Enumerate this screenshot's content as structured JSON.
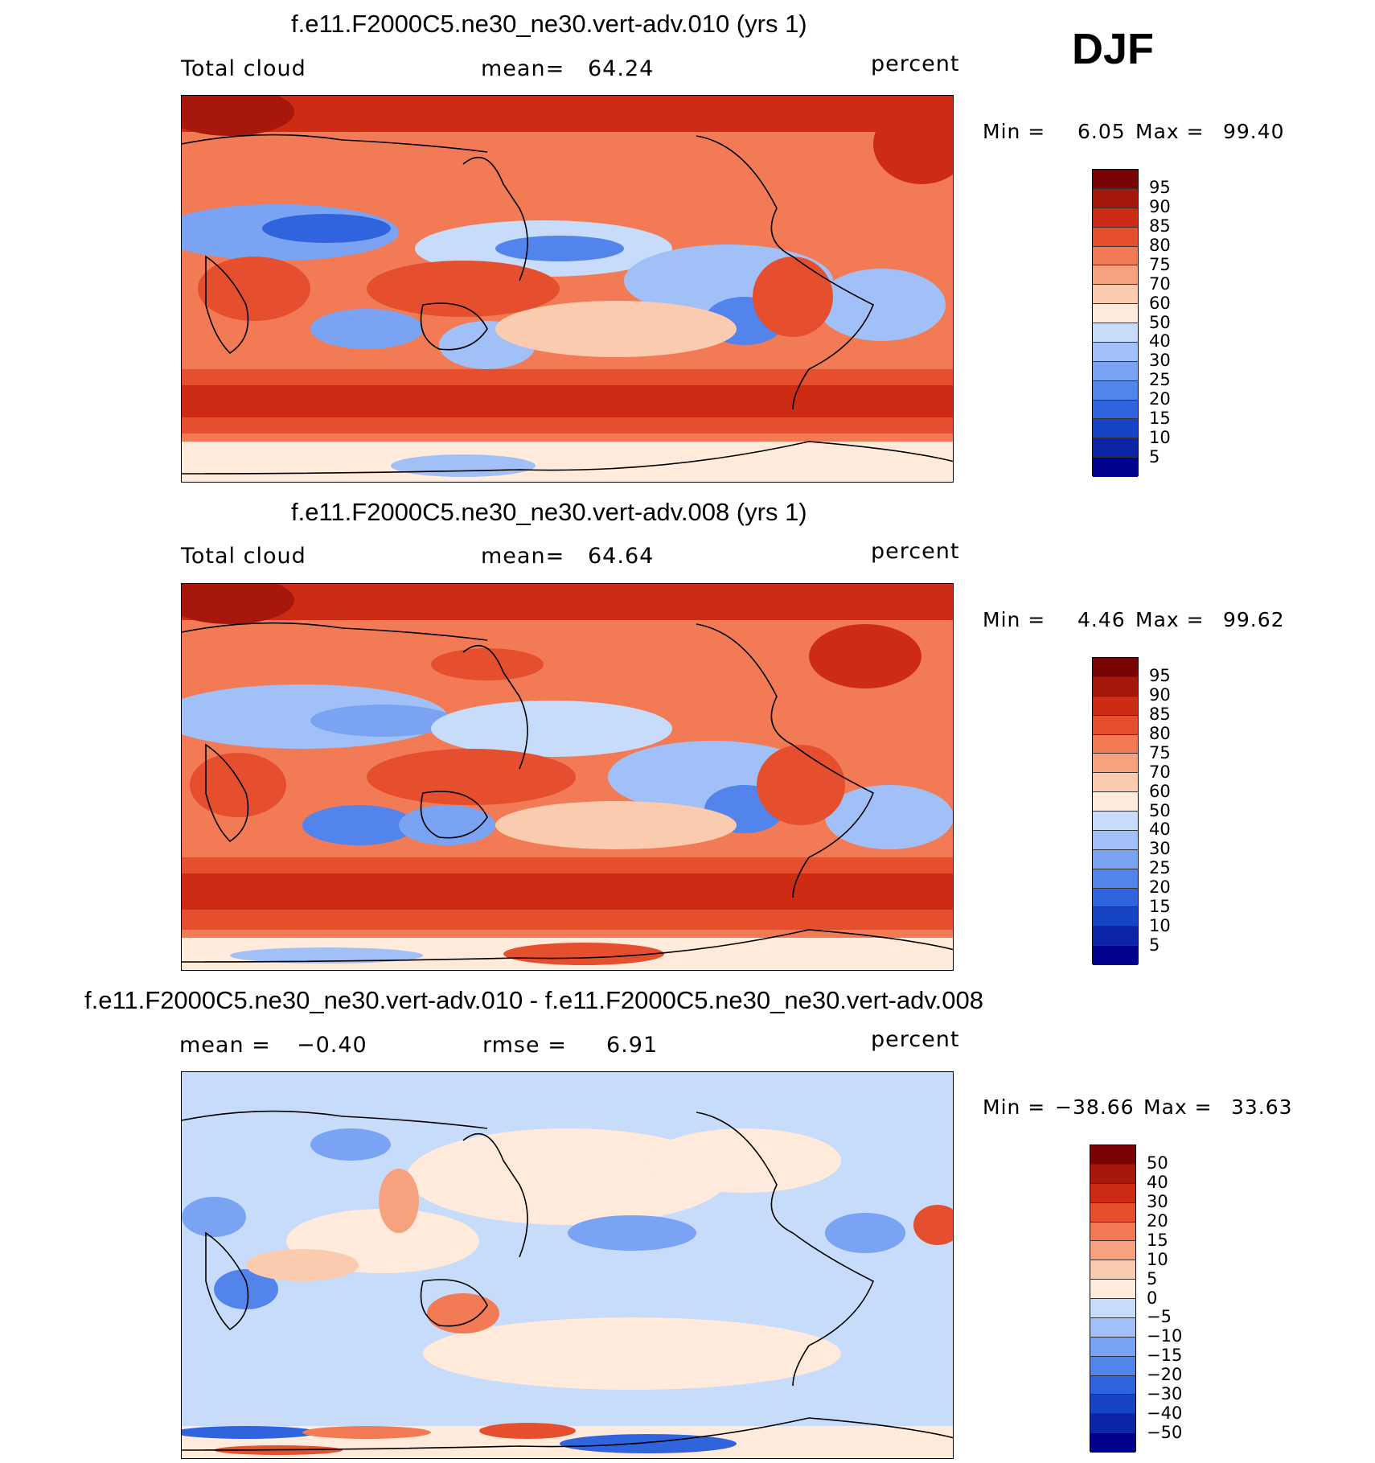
{
  "season": "DJF",
  "palette": {
    "levels_blue_red": [
      "#00008f",
      "#0b24a8",
      "#1744c4",
      "#2f64de",
      "#5284ec",
      "#7aa3f3",
      "#a1c0f7",
      "#c7dbfa",
      "#ffeadb",
      "#fbcbb0",
      "#f7a27f",
      "#f27b55",
      "#e54f2e",
      "#ce2b15",
      "#a8170b",
      "#7a0303"
    ]
  },
  "chart_data": [
    {
      "type": "heatmap",
      "panel": "top",
      "title": "f.e11.F2000C5.ne30_ne30.vert-adv.010 (yrs 1)",
      "left_label": "Total cloud",
      "mean_label": "mean=",
      "mean_value": "64.24",
      "units": "percent",
      "stat_min_label": "Min =",
      "stat_min": "6.05",
      "stat_max_label": "Max =",
      "stat_max": "99.40",
      "colorbar_labels": [
        "95",
        "90",
        "85",
        "80",
        "75",
        "70",
        "60",
        "50",
        "40",
        "30",
        "25",
        "20",
        "15",
        "10",
        "5"
      ],
      "mean": 64.24,
      "min": 6.05,
      "max": 99.4
    },
    {
      "type": "heatmap",
      "panel": "middle",
      "title": "f.e11.F2000C5.ne30_ne30.vert-adv.008 (yrs 1)",
      "left_label": "Total cloud",
      "mean_label": "mean=",
      "mean_value": "64.64",
      "units": "percent",
      "stat_min_label": "Min =",
      "stat_min": "4.46",
      "stat_max_label": "Max =",
      "stat_max": "99.62",
      "colorbar_labels": [
        "95",
        "90",
        "85",
        "80",
        "75",
        "70",
        "60",
        "50",
        "40",
        "30",
        "25",
        "20",
        "15",
        "10",
        "5"
      ],
      "mean": 64.64,
      "min": 4.46,
      "max": 99.62
    },
    {
      "type": "heatmap",
      "panel": "bottom",
      "title": "f.e11.F2000C5.ne30_ne30.vert-adv.010 - f.e11.F2000C5.ne30_ne30.vert-adv.008",
      "left_label": "mean =",
      "mean_value": "−0.40",
      "rmse_label": "rmse =",
      "rmse_value": "6.91",
      "units": "percent",
      "stat_min_label": "Min =",
      "stat_min": "−38.66",
      "stat_max_label": "Max =",
      "stat_max": "33.63",
      "colorbar_labels": [
        "50",
        "40",
        "30",
        "20",
        "15",
        "10",
        "5",
        "0",
        "−5",
        "−10",
        "−15",
        "−20",
        "−30",
        "−40",
        "−50"
      ],
      "mean": -0.4,
      "rmse": 6.91,
      "min": -38.66,
      "max": 33.63
    }
  ]
}
